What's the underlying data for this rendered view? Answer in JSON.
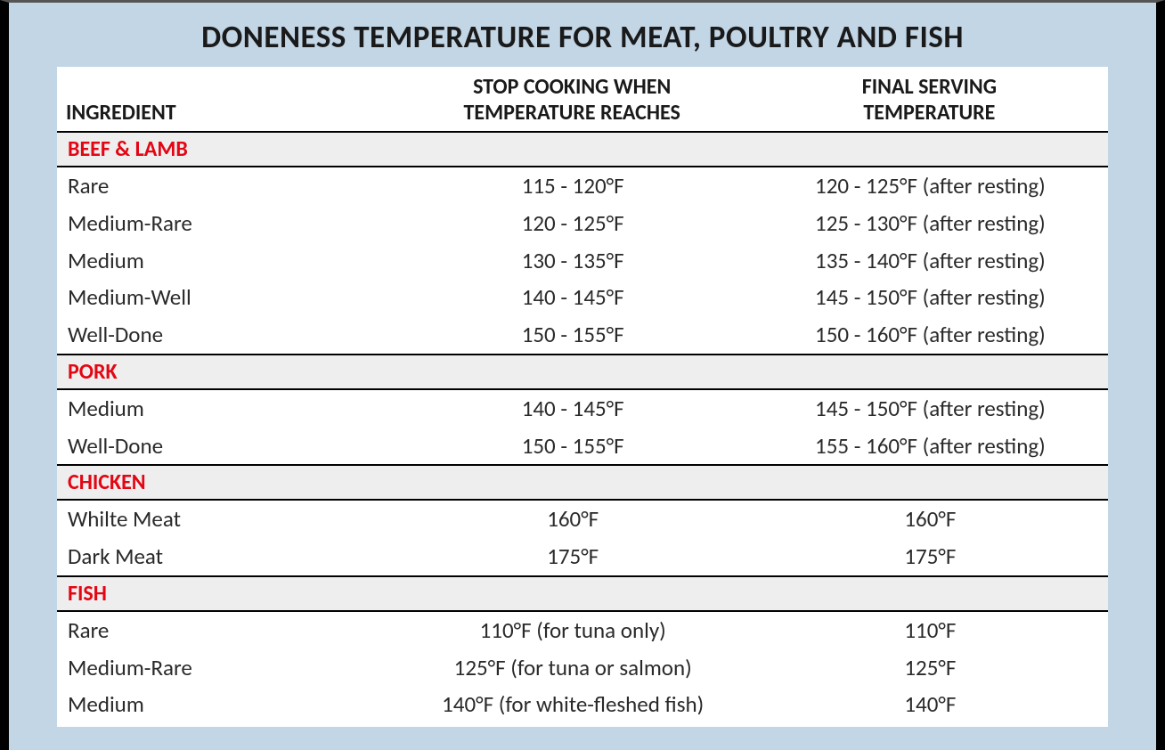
{
  "chart": {
    "type": "table",
    "title": "DONENESS TEMPERATURE FOR MEAT, POULTRY AND FISH",
    "background_color": "#c3d6e6",
    "table_background": "#ffffff",
    "section_bg": "#eeeeee",
    "section_text_color": "#e30613",
    "border_color": "#000000",
    "font_family": "Calibri",
    "title_fontsize_pt": 26,
    "header_fontsize_pt": 18,
    "body_fontsize_pt": 19,
    "columns": [
      {
        "key": "ingredient",
        "label": "INGREDIENT",
        "align": "left",
        "width_pct": 32
      },
      {
        "key": "stop",
        "label": "STOP COOKING WHEN\nTEMPERATURE REACHES",
        "align": "center",
        "width_pct": 34
      },
      {
        "key": "final",
        "label": "FINAL SERVING\nTEMPERATURE",
        "align": "center",
        "width_pct": 34
      }
    ],
    "sections": [
      {
        "name": "BEEF & LAMB",
        "rows": [
          {
            "ingredient": "Rare",
            "stop": "115 - 120°F",
            "final": "120 - 125°F (after resting)"
          },
          {
            "ingredient": "Medium-Rare",
            "stop": "120 - 125°F",
            "final": "125 - 130°F (after resting)"
          },
          {
            "ingredient": "Medium",
            "stop": "130 - 135°F",
            "final": "135 - 140°F (after resting)"
          },
          {
            "ingredient": "Medium-Well",
            "stop": "140 - 145°F",
            "final": "145 - 150°F (after resting)"
          },
          {
            "ingredient": "Well-Done",
            "stop": "150 - 155°F",
            "final": "150 - 160°F (after resting)"
          }
        ]
      },
      {
        "name": "PORK",
        "rows": [
          {
            "ingredient": "Medium",
            "stop": "140 - 145°F",
            "final": "145 - 150°F (after resting)"
          },
          {
            "ingredient": "Well-Done",
            "stop": "150 - 155°F",
            "final": "155 - 160°F (after resting)"
          }
        ]
      },
      {
        "name": "CHICKEN",
        "rows": [
          {
            "ingredient": "Whilte Meat",
            "stop": "160°F",
            "final": "160°F"
          },
          {
            "ingredient": "Dark Meat",
            "stop": "175°F",
            "final": "175°F"
          }
        ]
      },
      {
        "name": "FISH",
        "rows": [
          {
            "ingredient": "Rare",
            "stop": "110°F (for tuna only)",
            "final": "110°F"
          },
          {
            "ingredient": "Medium-Rare",
            "stop": "125°F (for tuna or salmon)",
            "final": "125°F"
          },
          {
            "ingredient": "Medium",
            "stop": "140°F (for white-fleshed fish)",
            "final": "140°F"
          }
        ]
      }
    ]
  }
}
